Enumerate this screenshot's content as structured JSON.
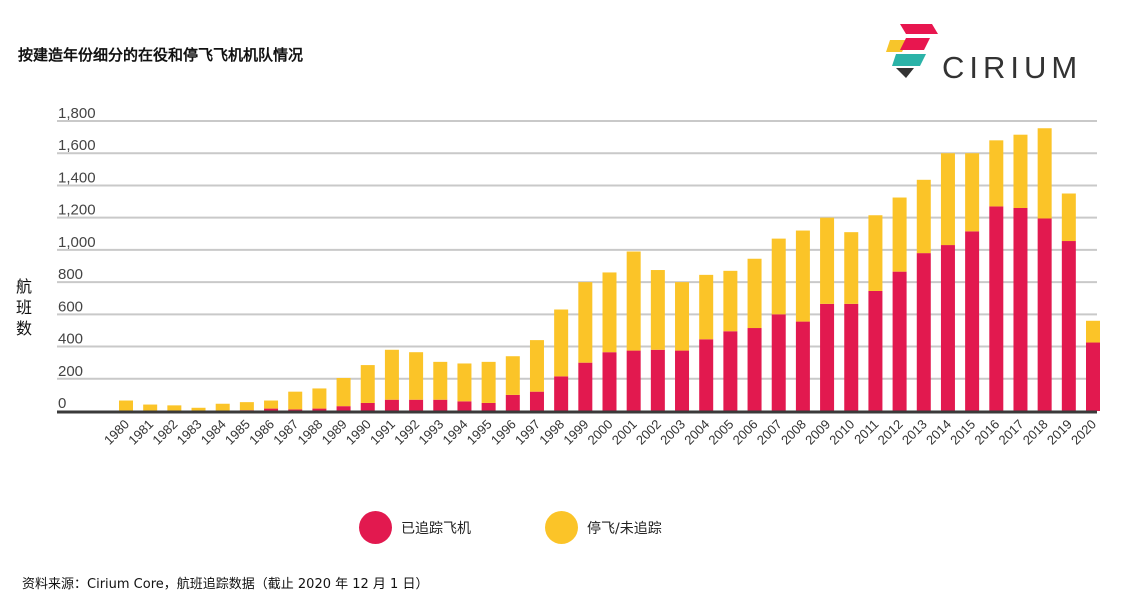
{
  "page": {
    "title": "按建造年份细分的在役和停飞飞机机队情况",
    "source": "资料来源：Cirium Core，航班追踪数据（截止 2020 年 12 月 1 日）"
  },
  "logo": {
    "text": "CIRIUM",
    "colors": [
      "#e8164f",
      "#f7c52b",
      "#2bb3a8",
      "#333333"
    ]
  },
  "chart_data": {
    "type": "bar",
    "stacked": true,
    "title": "",
    "xlabel": "",
    "ylabel": "航班数",
    "ylim": [
      0,
      1800
    ],
    "yticks": [
      "0",
      "200",
      "400",
      "600",
      "800",
      "1,000",
      "1,200",
      "1,400",
      "1,600",
      "1,800"
    ],
    "grid": true,
    "legend_position": "bottom",
    "categories": [
      "1980",
      "1981",
      "1982",
      "1983",
      "1984",
      "1985",
      "1986",
      "1987",
      "1988",
      "1989",
      "1990",
      "1991",
      "1992",
      "1993",
      "1994",
      "1995",
      "1996",
      "1997",
      "1998",
      "1999",
      "2000",
      "2001",
      "2002",
      "2003",
      "2004",
      "2005",
      "2006",
      "2007",
      "2008",
      "2009",
      "2010",
      "2011",
      "2012",
      "2013",
      "2014",
      "2015",
      "2016",
      "2017",
      "2018",
      "2019",
      "2020"
    ],
    "series": [
      {
        "name": "已追踪飞机",
        "color": "#e2194f",
        "values": [
          0,
          0,
          0,
          0,
          0,
          5,
          15,
          10,
          15,
          30,
          50,
          70,
          70,
          70,
          60,
          50,
          100,
          120,
          215,
          300,
          365,
          375,
          380,
          375,
          445,
          495,
          515,
          600,
          555,
          665,
          665,
          745,
          865,
          980,
          1030,
          1115,
          1270,
          1260,
          1195,
          1055,
          425
        ]
      },
      {
        "name": "停飞/未追踪",
        "color": "#fbc428",
        "values": [
          65,
          40,
          35,
          20,
          45,
          50,
          50,
          110,
          125,
          175,
          235,
          310,
          295,
          235,
          235,
          255,
          240,
          320,
          415,
          500,
          495,
          615,
          495,
          425,
          400,
          375,
          430,
          470,
          565,
          535,
          445,
          470,
          460,
          455,
          570,
          485,
          410,
          455,
          560,
          295,
          135
        ]
      }
    ]
  }
}
